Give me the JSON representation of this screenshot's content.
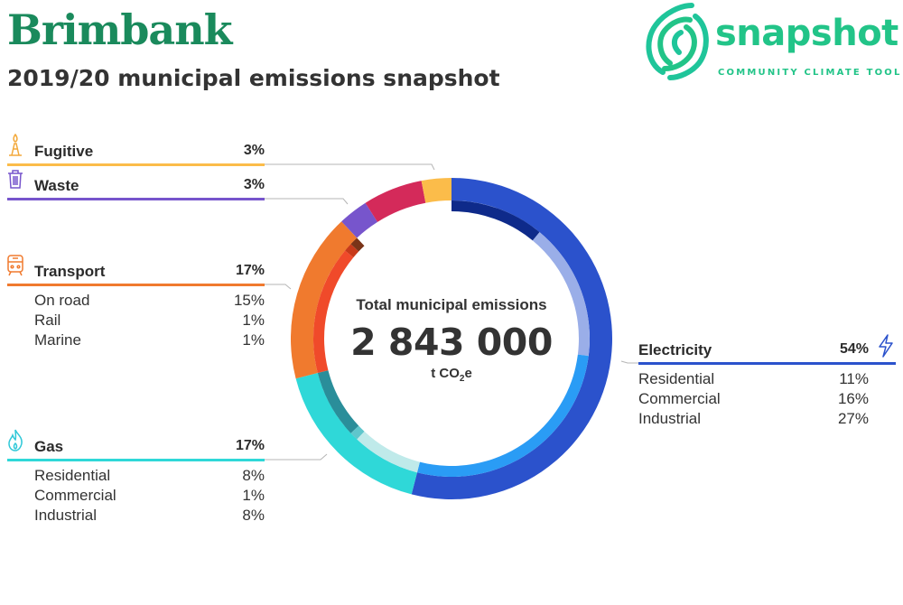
{
  "header": {
    "title": "Brimbank",
    "subtitle": "2019/20 municipal emissions snapshot"
  },
  "logo": {
    "word": "snapshot",
    "tagline": "COMMUNITY CLIMATE TOOL"
  },
  "center": {
    "label": "Total municipal emissions",
    "value": "2 843 000",
    "unit_prefix": "t CO",
    "unit_sub": "2",
    "unit_suffix": "e"
  },
  "categories": {
    "fugitive": {
      "name": "Fugitive",
      "pct": "3%",
      "icon": "oil-rig-icon"
    },
    "waste": {
      "name": "Waste",
      "pct": "3%",
      "icon": "trash-bin-icon"
    },
    "transport": {
      "name": "Transport",
      "pct": "17%",
      "icon": "train-icon",
      "items": [
        {
          "label": "On road",
          "value": "15%"
        },
        {
          "label": "Rail",
          "value": "1%"
        },
        {
          "label": "Marine",
          "value": "1%"
        }
      ]
    },
    "gas": {
      "name": "Gas",
      "pct": "17%",
      "icon": "flame-icon",
      "items": [
        {
          "label": "Residential",
          "value": "8%"
        },
        {
          "label": "Commercial",
          "value": "1%"
        },
        {
          "label": "Industrial",
          "value": "8%"
        }
      ]
    },
    "electricity": {
      "name": "Electricity",
      "pct": "54%",
      "icon": "lightning-icon",
      "items": [
        {
          "label": "Residential",
          "value": "11%"
        },
        {
          "label": "Commercial",
          "value": "16%"
        },
        {
          "label": "Industrial",
          "value": "27%"
        }
      ]
    }
  },
  "colors": {
    "electricity": "#2b52cc",
    "gas": "#2fd8d8",
    "transport": "#f07a2e",
    "waste": "#7755cc",
    "agriculture": "#d42a5a",
    "fugitive": "#fbbc4a",
    "title": "#1a8a5c",
    "logo": "#22c488"
  },
  "chart_data": {
    "type": "pie",
    "total": 2843000,
    "unit": "t CO2e",
    "series": [
      {
        "name": "Electricity",
        "value": 54,
        "color": "#2b52cc",
        "sub": [
          {
            "name": "Residential",
            "value": 11,
            "color": "#0e2a8a"
          },
          {
            "name": "Commercial",
            "value": 16,
            "color": "#9aaee8"
          },
          {
            "name": "Industrial",
            "value": 27,
            "color": "#2a9cf5"
          }
        ]
      },
      {
        "name": "Gas",
        "value": 17,
        "color": "#2fd8d8",
        "sub": [
          {
            "name": "Residential",
            "value": 8,
            "color": "#bfeaea"
          },
          {
            "name": "Commercial",
            "value": 1,
            "color": "#5fc6cc"
          },
          {
            "name": "Industrial",
            "value": 8,
            "color": "#2a8e9a"
          }
        ]
      },
      {
        "name": "Transport",
        "value": 17,
        "color": "#f07a2e",
        "sub": [
          {
            "name": "On road",
            "value": 15,
            "color": "#f04a2a"
          },
          {
            "name": "Rail",
            "value": 1,
            "color": "#c83a1a"
          },
          {
            "name": "Marine",
            "value": 1,
            "color": "#7a3418"
          }
        ]
      },
      {
        "name": "Waste",
        "value": 3,
        "color": "#7755cc"
      },
      {
        "value": 6,
        "color": "#d42a5a"
      },
      {
        "name": "Fugitive",
        "value": 3,
        "color": "#fbbc4a"
      }
    ]
  }
}
